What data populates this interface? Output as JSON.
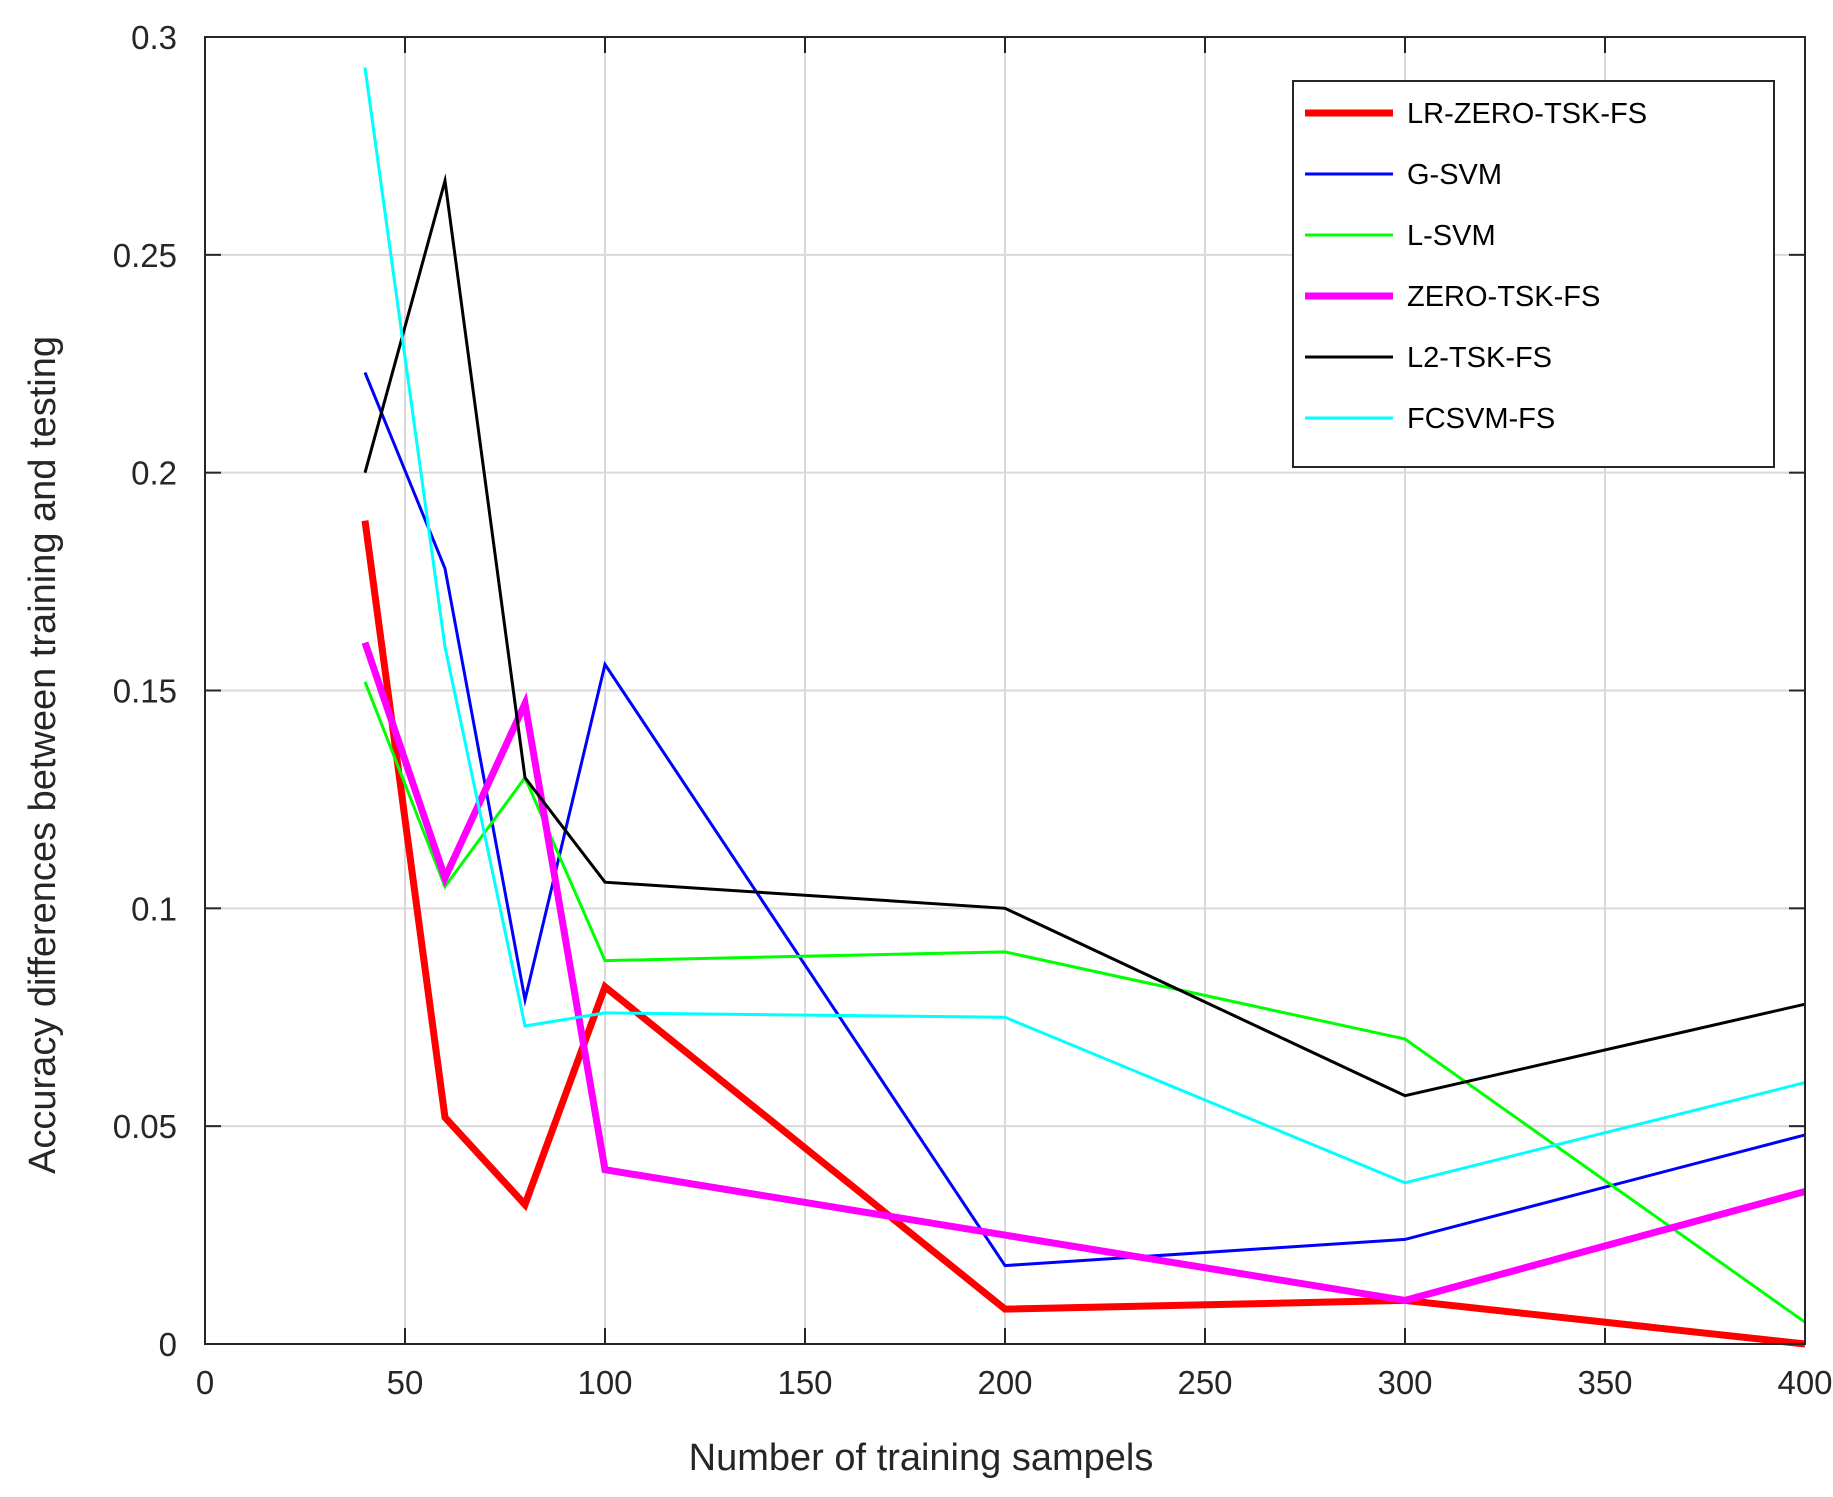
{
  "chart_data": {
    "type": "line",
    "title": "",
    "xlabel": "Number of training sampels",
    "ylabel": "Accuracy differences between training and testing",
    "xlim": [
      0,
      400
    ],
    "ylim": [
      0,
      0.3
    ],
    "xticks": [
      0,
      50,
      100,
      150,
      200,
      250,
      300,
      350,
      400
    ],
    "yticks": [
      0,
      0.05,
      0.1,
      0.15,
      0.2,
      0.25,
      0.3
    ],
    "xtick_labels": [
      "0",
      "50",
      "100",
      "150",
      "200",
      "250",
      "300",
      "350",
      "400"
    ],
    "ytick_labels": [
      "0",
      "0.05",
      "0.1",
      "0.15",
      "0.2",
      "0.25",
      "0.3"
    ],
    "grid": true,
    "legend_position": "top-right",
    "x": [
      40,
      60,
      80,
      100,
      200,
      300,
      400
    ],
    "series": [
      {
        "name": "LR-ZERO-TSK-FS",
        "color": "#ff0000",
        "width": 7,
        "values": [
          0.189,
          0.052,
          0.032,
          0.082,
          0.008,
          0.01,
          0.0
        ]
      },
      {
        "name": "G-SVM",
        "color": "#0000ff",
        "width": 3,
        "values": [
          0.223,
          0.178,
          0.079,
          0.156,
          0.018,
          0.024,
          0.048
        ]
      },
      {
        "name": "L-SVM",
        "color": "#00ff00",
        "width": 3,
        "values": [
          0.152,
          0.105,
          0.13,
          0.088,
          0.09,
          0.07,
          0.005
        ]
      },
      {
        "name": "ZERO-TSK-FS",
        "color": "#ff00ff",
        "width": 7,
        "values": [
          0.161,
          0.107,
          0.147,
          0.04,
          0.025,
          0.01,
          0.035
        ]
      },
      {
        "name": "L2-TSK-FS",
        "color": "#000000",
        "width": 3,
        "values": [
          0.2,
          0.267,
          0.13,
          0.106,
          0.1,
          0.057,
          0.078
        ]
      },
      {
        "name": "FCSVM-FS",
        "color": "#00ffff",
        "width": 3,
        "values": [
          0.293,
          0.16,
          0.073,
          0.076,
          0.075,
          0.037,
          0.06
        ]
      }
    ]
  }
}
